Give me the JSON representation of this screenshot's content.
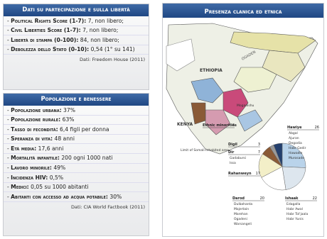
{
  "freedom": {
    "title": "Dati su partecipazione e sulla libertà",
    "items": [
      {
        "label": "Political Rights Score (1-7):",
        "value": "7, non libero;"
      },
      {
        "label": "Civil Liberties Score (1-7):",
        "value": "7, non libero;"
      },
      {
        "label": "Libertà di stampa (0-100):",
        "value": "84, non libero;"
      },
      {
        "label": "Debolezza dello Stato (0-10):",
        "value": "0,54 (1° su 141)"
      }
    ],
    "source": "Dati: Freedom House (2011)"
  },
  "population": {
    "title": "Popolazione e benessere",
    "items": [
      {
        "label": "Popolazione urbana:",
        "value": "37%"
      },
      {
        "label": "Popolazione rurale:",
        "value": "63%"
      },
      {
        "label": "Tasso di fecondità:",
        "value": "6,4 figli per donna"
      },
      {
        "label": "Speranza di vita:",
        "value": "48 anni"
      },
      {
        "label": "Età media:",
        "value": "17,6 anni"
      },
      {
        "label": "Mortalità infantile:",
        "value": "200 ogni 1000 nati"
      },
      {
        "label": "Lavoro minorile:",
        "value": "49%"
      },
      {
        "label": "Incidenza HIV:",
        "value": "0,5%"
      },
      {
        "label": "Medici:",
        "value": "0,05 su 1000 abitanti"
      },
      {
        "label": "Abitanti con accesso ad acqua potabile:",
        "value": "30%"
      }
    ],
    "source": "Dati: CIA World Factbook (2011)"
  },
  "map": {
    "title": "Presenza clanica ed etnica",
    "labels": [
      "ETHIOPIA",
      "OGADEN",
      "KENYA",
      "Mogadishu",
      "Limit of Somali-inhabited area"
    ]
  },
  "chart_data": {
    "type": "pie",
    "categories": [
      "Hawiye",
      "Ishaak",
      "Darod",
      "Rahanweyn",
      "Dir",
      "Digil",
      "Ethnic minorities"
    ],
    "values": [
      26,
      22,
      20,
      17,
      7,
      3,
      6
    ],
    "colors": [
      "#b9d3ea",
      "#dde6ee",
      "#ffffff",
      "#f3efc8",
      "#8a5a36",
      "#9a9a9a",
      "#24406e"
    ],
    "members": [
      [
        "Abgal",
        "Ajuran",
        "Degodia",
        "Habr Gedir",
        "Hawadle",
        "Murosade"
      ],
      [
        "Edagalla",
        "Habr Awal",
        "Habr Tol'jaala",
        "Habr Yunis"
      ],
      [
        "Dulbahanta",
        "Majertain",
        "Marehan",
        "Ogadeni",
        "Warsangeli"
      ],
      [],
      [
        "Gadabursi",
        "Issa"
      ],
      [],
      []
    ]
  }
}
